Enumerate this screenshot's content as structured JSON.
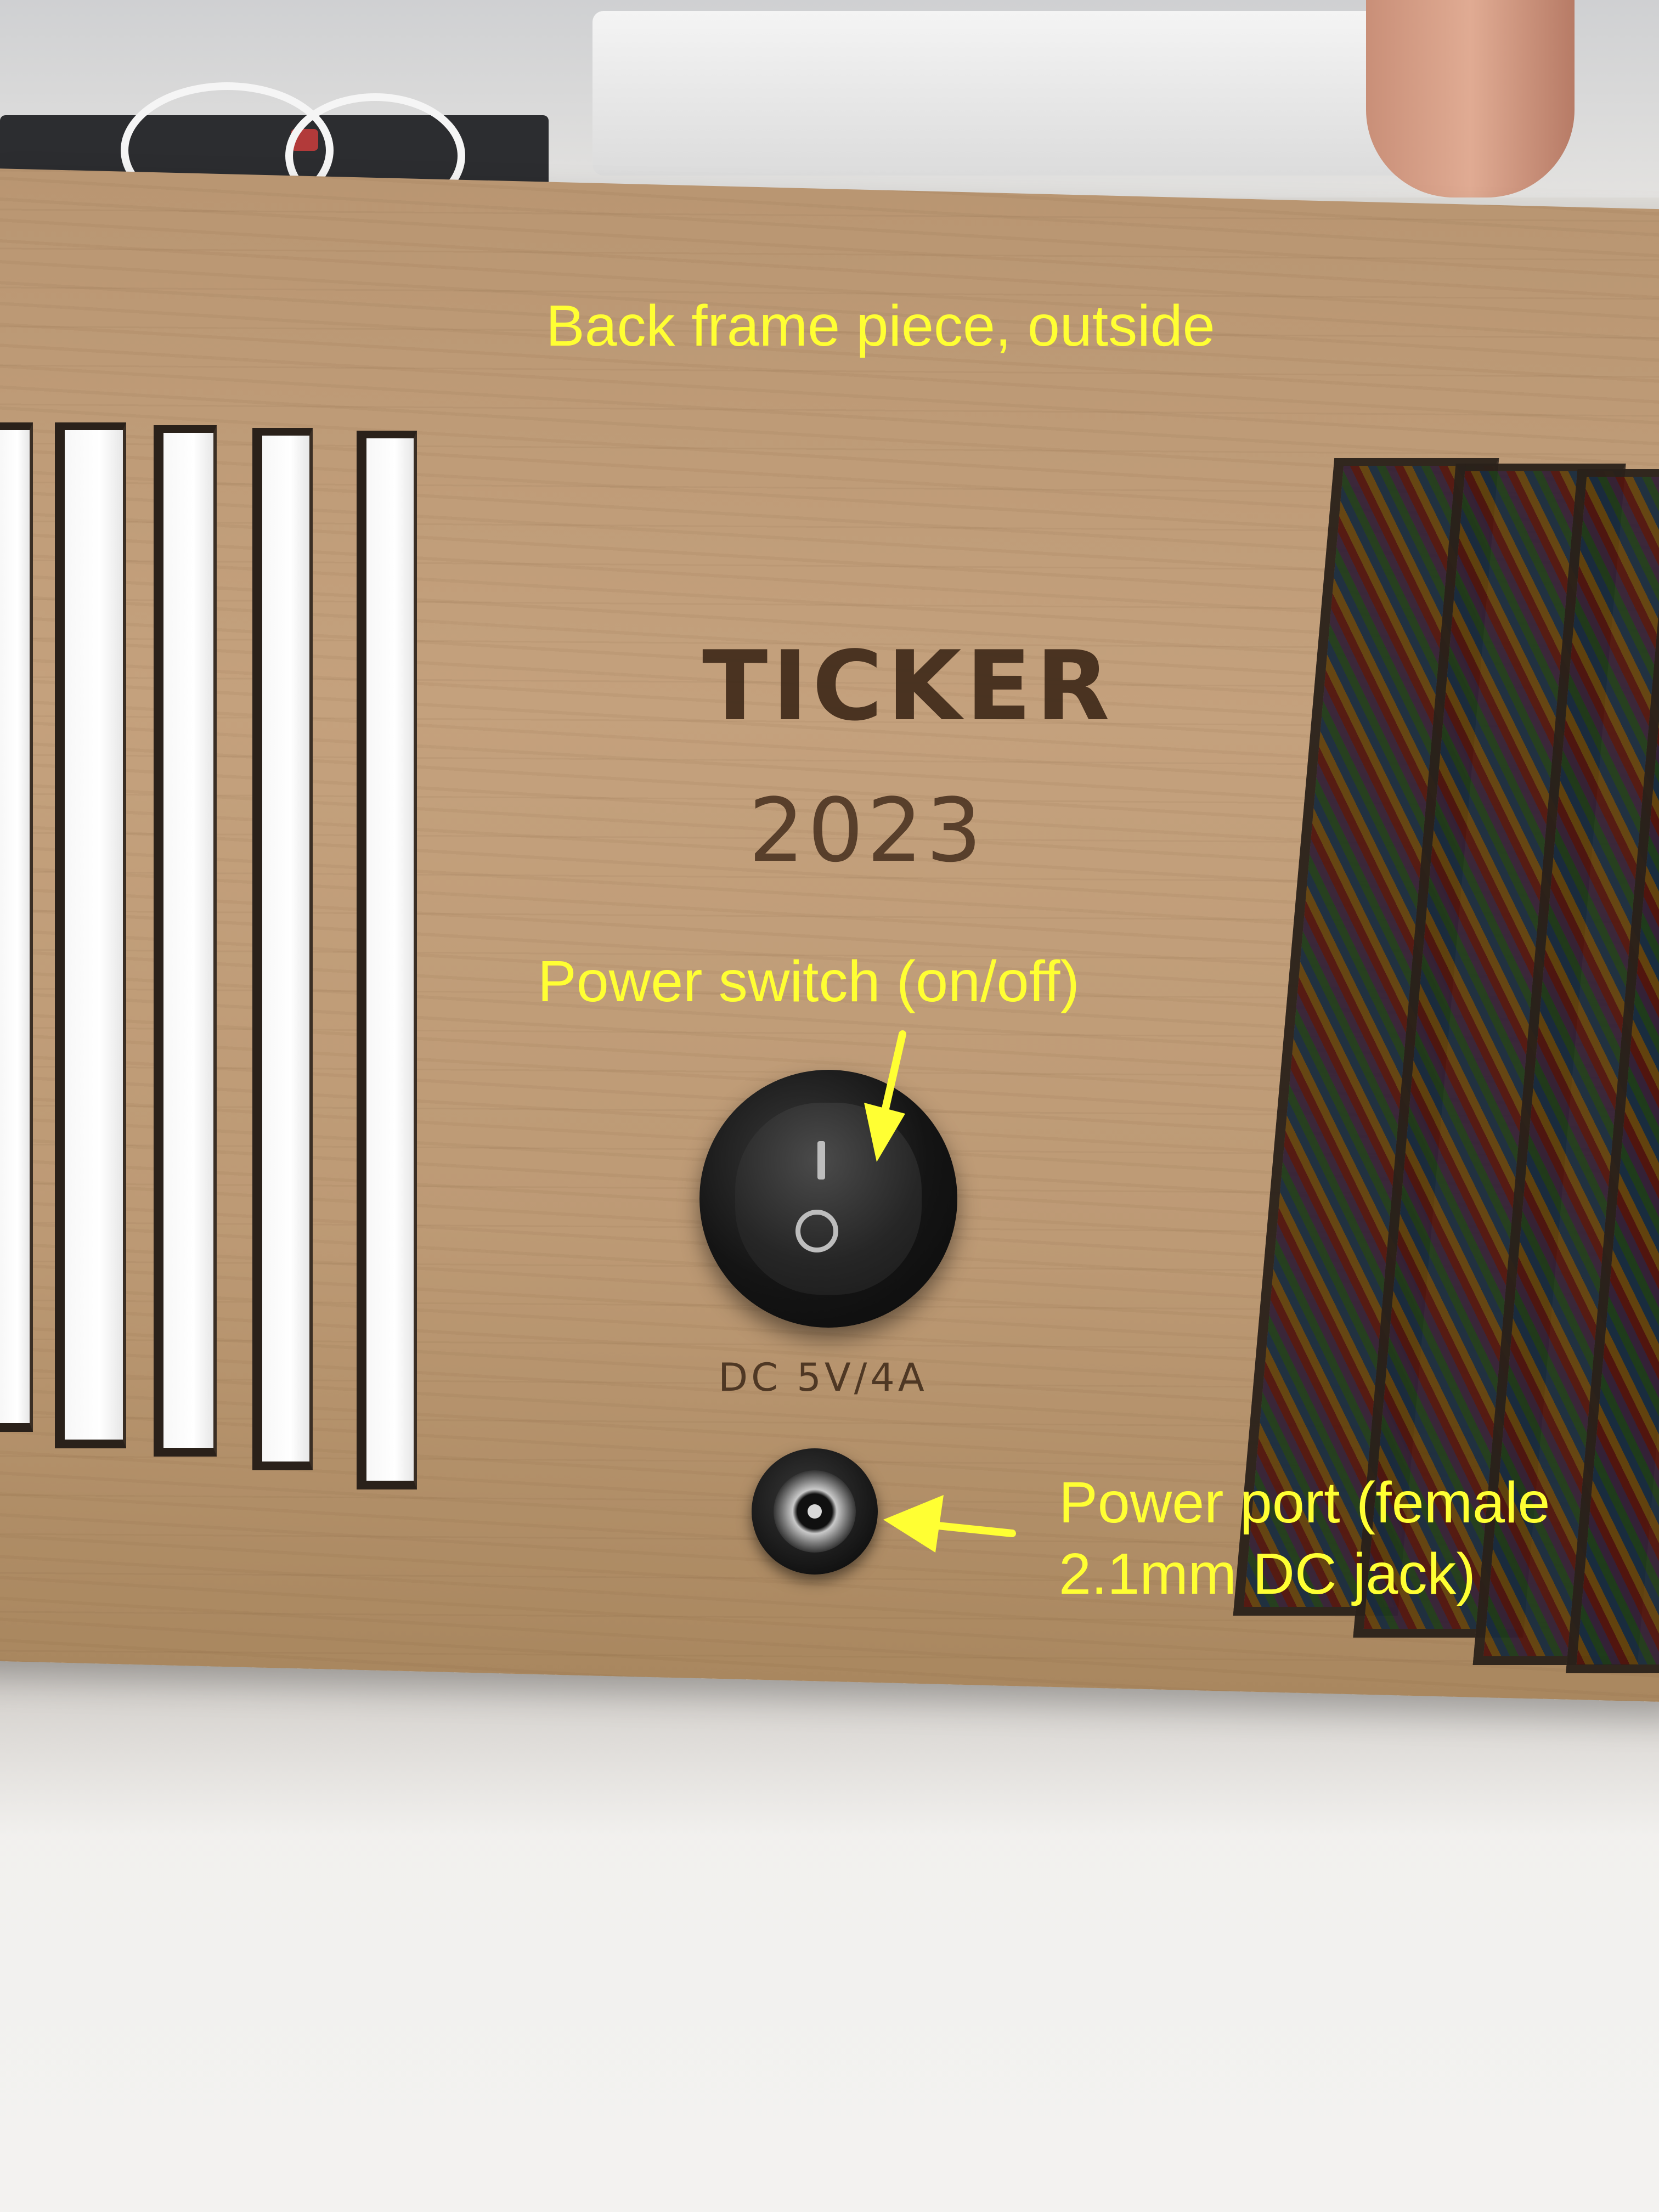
{
  "annotations": {
    "heading": "Back frame piece, outside",
    "switch_label": "Power switch (on/off)",
    "port_label_line1": "Power port (female",
    "port_label_line2": "2.1mm DC jack)",
    "color": "#ffff33"
  },
  "engraving": {
    "title": "TICKER",
    "year": "2023",
    "rating": "DC 5V/4A"
  },
  "switch_symbols": {
    "on": "I",
    "off": "O"
  }
}
